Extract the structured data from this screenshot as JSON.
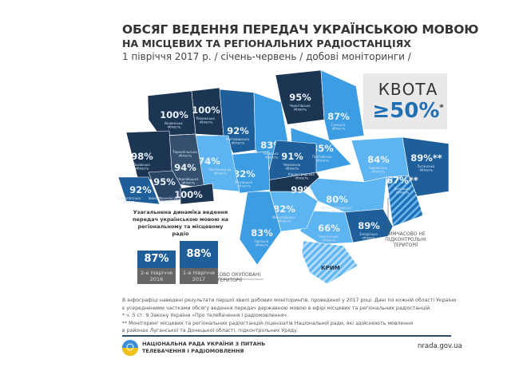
{
  "header": {
    "title": "ОБСЯГ ВЕДЕННЯ ПЕРЕДАЧ УКРАЇНСЬКОЮ МОВОЮ",
    "subtitle": "НА МІСЦЕВИХ ТА РЕГІОНАЛЬНИХ РАДІОСТАНЦІЯХ",
    "period": "1 півріччя 2017 р.  / січень-червень / добові моніторинги /"
  },
  "quota": {
    "label": "КВОТА",
    "value": "≥50%",
    "footnote_mark": "*"
  },
  "colors": {
    "dark": "#1b3553",
    "mid": "#1f5f99",
    "light": "#3d9de2",
    "lighter": "#5cb4f0",
    "occupied_stripe": "#a9d4f5",
    "text": "#333333"
  },
  "regions": [
    {
      "name": "Волинська область",
      "value": "100%"
    },
    {
      "name": "Рівненська область",
      "value": "100%"
    },
    {
      "name": "Житомирська область",
      "value": "92%"
    },
    {
      "name": "Київська область",
      "value": "83%"
    },
    {
      "name": "Чернігівська область",
      "value": "95%"
    },
    {
      "name": "Сумська область",
      "value": "87%"
    },
    {
      "name": "Полтавська область",
      "value": "85%"
    },
    {
      "name": "Харківська область",
      "value": "84%"
    },
    {
      "name": "Луганська область",
      "value": "89%**"
    },
    {
      "name": "Донецька область",
      "value": "67%**"
    },
    {
      "name": "Дніпропетровська область",
      "value": "80%"
    },
    {
      "name": "Запорізька область",
      "value": "89%"
    },
    {
      "name": "Херсонська область",
      "value": "66%"
    },
    {
      "name": "Миколаївська область",
      "value": "82%"
    },
    {
      "name": "Одеська область",
      "value": "83%"
    },
    {
      "name": "Кіровоградська область",
      "value": "99%"
    },
    {
      "name": "Черкаська область",
      "value": "91%"
    },
    {
      "name": "Вінницька область",
      "value": "82%"
    },
    {
      "name": "Хмельницька область",
      "value": "74%"
    },
    {
      "name": "Тернопільська область",
      "value": "94%"
    },
    {
      "name": "Львівська область",
      "value": "98%"
    },
    {
      "name": "Івано-Франківська область",
      "value": "95%"
    },
    {
      "name": "Закарпатська область",
      "value": "92%"
    },
    {
      "name": "Чернівецька область",
      "value": "100%"
    }
  ],
  "crimea": {
    "label": "КРИМ"
  },
  "annotations": {
    "uncontrolled": "ТИМЧАСОВО НЕ ПІДКОНТРОЛЬНІ ТЕРИТОРІЇ",
    "occupied": "ТИМЧАСОВО ОКУПОВАНІ ТЕРИТОРІЇ"
  },
  "dynamics": {
    "title": "Узагальнена динаміка ведення передач українською мовою на регіональному та місцевому радіо",
    "items": [
      {
        "value": "87%",
        "period": "2-е півріччя",
        "year": "2016"
      },
      {
        "value": "88%",
        "period": "1-е півріччя",
        "year": "2017"
      }
    ]
  },
  "notes": [
    "В інфографіці наведені результати першої хвилі добових моніторингів, проведеної у 2017 році. Дані по кожній області України",
    "є усередненими частками обсягу ведення передач державною мовою в ефірі місцевих та регіональних радіостанцій.",
    "* ч. 5 ст. 9 Закону України «Про телебачення і радіомовлення».",
    "** Моніторинг місцевих та регіональних радіостанцій-ліцензіатів Національної ради, які здійснюють мовлення",
    "в районах Луганської та Донецької області, підконтрольних Уряду."
  ],
  "footer": {
    "org_line1": "НАЦІОНАЛЬНА РАДА УКРАЇНИ З ПИТАНЬ",
    "org_line2": "ТЕЛЕБАЧЕННЯ І РАДІОМОВЛЕННЯ",
    "url": "nrada.gov.ua"
  }
}
